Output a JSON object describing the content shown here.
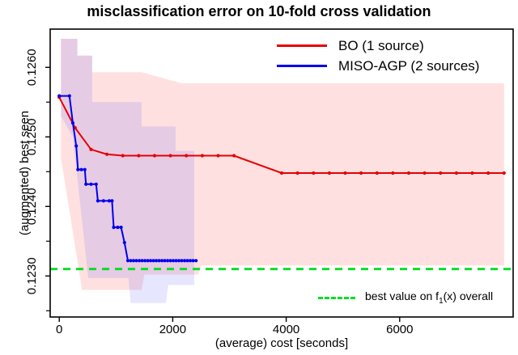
{
  "chart_data": {
    "type": "line",
    "title": "misclassification error on 10-fold cross validation",
    "xlabel": "(average) cost [seconds]",
    "ylabel": "(augmented) best seen",
    "xlim": [
      -160,
      8000
    ],
    "ylim": [
      0.12241,
      0.12655
    ],
    "grid": false,
    "x_ticks": [
      {
        "value": 0,
        "label": "0"
      },
      {
        "value": 2000,
        "label": "2000"
      },
      {
        "value": 4000,
        "label": "4000"
      },
      {
        "value": 6000,
        "label": "6000"
      }
    ],
    "y_ticks_major": [
      {
        "value": 0.123,
        "label": "0.1230"
      },
      {
        "value": 0.124,
        "label": "0.1240"
      },
      {
        "value": 0.125,
        "label": "0.1250"
      },
      {
        "value": 0.126,
        "label": "0.1260"
      }
    ],
    "y_ticks_minor": [
      0.1225,
      0.1235,
      0.1245,
      0.1255
    ],
    "legend_position": "top-right",
    "baseline": {
      "value": 0.1231,
      "color": "#00dd22",
      "label_prefix": "best value on f",
      "label_sub": "1",
      "label_suffix": "(x) overall"
    },
    "series": [
      {
        "name": "BO (1 source)",
        "color": "#e60000",
        "band_color": "rgba(255,0,0,0.12)",
        "points": [
          [
            0,
            0.12557
          ],
          [
            280,
            0.12513
          ],
          [
            560,
            0.12482
          ],
          [
            840,
            0.12475
          ],
          [
            1120,
            0.12473
          ],
          [
            1400,
            0.12473
          ],
          [
            1680,
            0.12473
          ],
          [
            1960,
            0.12473
          ],
          [
            2240,
            0.12473
          ],
          [
            2520,
            0.12473
          ],
          [
            2800,
            0.12473
          ],
          [
            3080,
            0.12473
          ],
          [
            3920,
            0.12448
          ],
          [
            4200,
            0.12448
          ],
          [
            4480,
            0.12448
          ],
          [
            4760,
            0.12448
          ],
          [
            5040,
            0.12448
          ],
          [
            5320,
            0.12448
          ],
          [
            5600,
            0.12448
          ],
          [
            5880,
            0.12448
          ],
          [
            6160,
            0.12448
          ],
          [
            6440,
            0.12448
          ],
          [
            6720,
            0.12448
          ],
          [
            7000,
            0.12448
          ],
          [
            7280,
            0.12448
          ],
          [
            7560,
            0.12448
          ],
          [
            7840,
            0.12448
          ]
        ],
        "band_upper": [
          [
            30,
            0.12641
          ],
          [
            320,
            0.12641
          ],
          [
            320,
            0.12617
          ],
          [
            580,
            0.12617
          ],
          [
            580,
            0.12593
          ],
          [
            1450,
            0.12593
          ],
          [
            2160,
            0.12577
          ],
          [
            7840,
            0.12577
          ]
        ],
        "band_lower": [
          [
            30,
            0.1247
          ],
          [
            400,
            0.1228
          ],
          [
            1450,
            0.1228
          ],
          [
            1500,
            0.12302
          ],
          [
            2450,
            0.12302
          ],
          [
            2500,
            0.12315
          ],
          [
            7840,
            0.12315
          ]
        ]
      },
      {
        "name": "MISO-AGP (2 sources)",
        "color": "#0000ee",
        "band_color": "rgba(60,60,255,0.13)",
        "points": [
          [
            0,
            0.12559
          ],
          [
            180,
            0.12559
          ],
          [
            240,
            0.1252
          ],
          [
            300,
            0.12487
          ],
          [
            330,
            0.12453
          ],
          [
            390,
            0.12453
          ],
          [
            450,
            0.12453
          ],
          [
            470,
            0.12432
          ],
          [
            560,
            0.12432
          ],
          [
            650,
            0.12432
          ],
          [
            680,
            0.12408
          ],
          [
            780,
            0.12408
          ],
          [
            880,
            0.12408
          ],
          [
            930,
            0.12408
          ],
          [
            960,
            0.1237
          ],
          [
            1030,
            0.1237
          ],
          [
            1090,
            0.1237
          ],
          [
            1150,
            0.12348
          ],
          [
            1210,
            0.12322
          ],
          [
            1260,
            0.12322
          ],
          [
            1310,
            0.12322
          ],
          [
            1360,
            0.12322
          ],
          [
            1410,
            0.12322
          ],
          [
            1460,
            0.12322
          ],
          [
            1510,
            0.12322
          ],
          [
            1560,
            0.12322
          ],
          [
            1610,
            0.12322
          ],
          [
            1660,
            0.12322
          ],
          [
            1710,
            0.12322
          ],
          [
            1760,
            0.12322
          ],
          [
            1810,
            0.12322
          ],
          [
            1860,
            0.12322
          ],
          [
            1910,
            0.12322
          ],
          [
            1960,
            0.12322
          ],
          [
            2010,
            0.12322
          ],
          [
            2060,
            0.12322
          ],
          [
            2110,
            0.12322
          ],
          [
            2160,
            0.12322
          ],
          [
            2210,
            0.12322
          ],
          [
            2260,
            0.12322
          ],
          [
            2310,
            0.12322
          ],
          [
            2360,
            0.12322
          ],
          [
            2410,
            0.12322
          ]
        ],
        "band_upper": [
          [
            30,
            0.12641
          ],
          [
            320,
            0.12641
          ],
          [
            320,
            0.12617
          ],
          [
            580,
            0.12617
          ],
          [
            580,
            0.1255
          ],
          [
            1450,
            0.1255
          ],
          [
            1450,
            0.12515
          ],
          [
            2050,
            0.12515
          ],
          [
            2050,
            0.1248
          ],
          [
            2380,
            0.1248
          ]
        ],
        "band_lower": [
          [
            30,
            0.1253
          ],
          [
            240,
            0.125
          ],
          [
            510,
            0.12297
          ],
          [
            1220,
            0.12297
          ],
          [
            1260,
            0.12261
          ],
          [
            1880,
            0.12261
          ],
          [
            1920,
            0.12287
          ],
          [
            2380,
            0.12287
          ]
        ]
      }
    ]
  }
}
